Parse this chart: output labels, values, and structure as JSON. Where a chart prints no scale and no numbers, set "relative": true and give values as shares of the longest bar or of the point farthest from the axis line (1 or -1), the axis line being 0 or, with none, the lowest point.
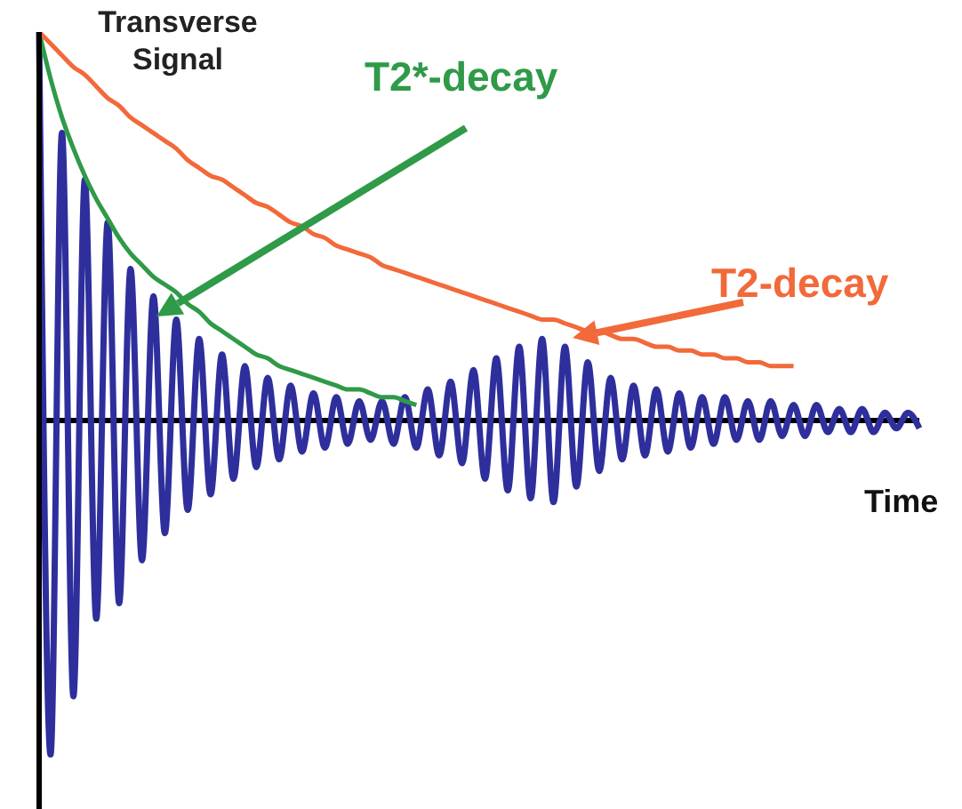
{
  "chart_data": {
    "type": "line",
    "relative": true,
    "ylabel": "Transverse Signal",
    "xlabel": "Time",
    "marker": "none",
    "categories": [
      null,
      null,
      null,
      null,
      null,
      null,
      null,
      null,
      null,
      null,
      null,
      null,
      null,
      null,
      null,
      null,
      null,
      null,
      null,
      null,
      null,
      null,
      null,
      null,
      null,
      null,
      null,
      null,
      null,
      null,
      null,
      null,
      null,
      null,
      null,
      null,
      null,
      null,
      null,
      null,
      null,
      null,
      null,
      null,
      null,
      null,
      null,
      null,
      null,
      null,
      null,
      null,
      null,
      null,
      null,
      null,
      null,
      null,
      null,
      null,
      null,
      null,
      null,
      null,
      null,
      null,
      null,
      null,
      null,
      null,
      null,
      null,
      null,
      null,
      null,
      null,
      null,
      null
    ],
    "series": [
      {
        "color": "#2e2f9c",
        "values": [
          1.0,
          -0.86,
          0.74,
          -0.71,
          0.62,
          -0.51,
          0.51,
          -0.47,
          0.39,
          -0.36,
          0.32,
          -0.29,
          0.26,
          -0.23,
          0.21,
          -0.19,
          0.17,
          -0.15,
          0.14,
          -0.12,
          0.11,
          -0.1,
          0.09,
          -0.08,
          0.07,
          -0.07,
          0.06,
          -0.06,
          0.05,
          -0.05,
          0.05,
          -0.06,
          0.06,
          -0.07,
          0.08,
          -0.09,
          0.1,
          -0.11,
          0.13,
          -0.15,
          0.16,
          -0.18,
          0.19,
          -0.2,
          0.21,
          -0.21,
          0.19,
          -0.17,
          0.15,
          -0.13,
          0.11,
          -0.1,
          0.09,
          -0.09,
          0.08,
          -0.08,
          0.07,
          -0.07,
          0.06,
          -0.06,
          0.06,
          -0.05,
          0.05,
          -0.05,
          0.05,
          -0.04,
          0.04,
          -0.04,
          0.04,
          -0.03,
          0.03,
          -0.03,
          0.03,
          -0.03,
          0.02,
          -0.02,
          0.02,
          -0.02
        ]
      },
      {
        "name": "T2*-decay",
        "color": "#2f9a48",
        "values": [
          1.0,
          0.88,
          0.78,
          0.7,
          0.63,
          0.57,
          0.52,
          0.47,
          0.43,
          0.4,
          0.37,
          0.35,
          0.33,
          0.3,
          0.28,
          0.25,
          0.23,
          0.21,
          0.19,
          0.17,
          0.16,
          0.14,
          0.13,
          0.12,
          0.11,
          0.1,
          0.09,
          0.08,
          0.08,
          0.07,
          0.06,
          0.06,
          0.05,
          0.04,
          null,
          null,
          null,
          null,
          null,
          null,
          null,
          null,
          null,
          null,
          null,
          null,
          null,
          null,
          null,
          null,
          null,
          null,
          null,
          null,
          null,
          null,
          null,
          null,
          null,
          null,
          null,
          null,
          null,
          null,
          null,
          null,
          null,
          null,
          null,
          null,
          null,
          null,
          null,
          null,
          null,
          null,
          null,
          null
        ]
      },
      {
        "name": "T2-decay",
        "color": "#f2693a",
        "values": [
          1.0,
          0.97,
          0.94,
          0.91,
          0.89,
          0.86,
          0.83,
          0.81,
          0.78,
          0.76,
          0.74,
          0.72,
          0.7,
          0.67,
          0.65,
          0.63,
          0.62,
          0.6,
          0.58,
          0.56,
          0.55,
          0.53,
          0.51,
          0.5,
          0.48,
          0.47,
          0.45,
          0.44,
          0.43,
          0.42,
          0.4,
          0.39,
          0.38,
          0.37,
          0.36,
          0.35,
          0.34,
          0.33,
          0.32,
          0.31,
          0.3,
          0.29,
          0.28,
          0.27,
          0.26,
          0.26,
          0.25,
          0.24,
          0.23,
          0.23,
          0.22,
          0.21,
          0.21,
          0.2,
          0.19,
          0.19,
          0.18,
          0.18,
          0.17,
          0.17,
          0.16,
          0.16,
          0.15,
          0.15,
          0.14,
          0.14,
          0.14,
          null,
          null,
          null,
          null,
          null,
          null,
          null,
          null,
          null,
          null,
          null
        ]
      }
    ]
  }
}
